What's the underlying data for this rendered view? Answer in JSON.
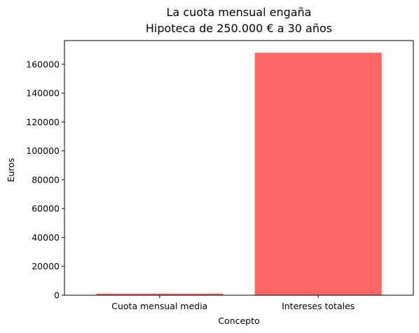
{
  "chart_data": {
    "type": "bar",
    "title": [
      "La cuota mensual engaña",
      "Hipoteca de 250.000 € a 30 años"
    ],
    "xlabel": "Concepto",
    "ylabel": "Euros",
    "categories": [
      "Cuota mensual media",
      "Intereses totales"
    ],
    "values": [
      1160,
      168000
    ],
    "ylim": [
      0,
      176400
    ],
    "yticks": [
      0,
      20000,
      40000,
      60000,
      80000,
      100000,
      120000,
      140000,
      160000
    ],
    "bar_color": "#ff6666",
    "grid": false,
    "legend": "none"
  }
}
